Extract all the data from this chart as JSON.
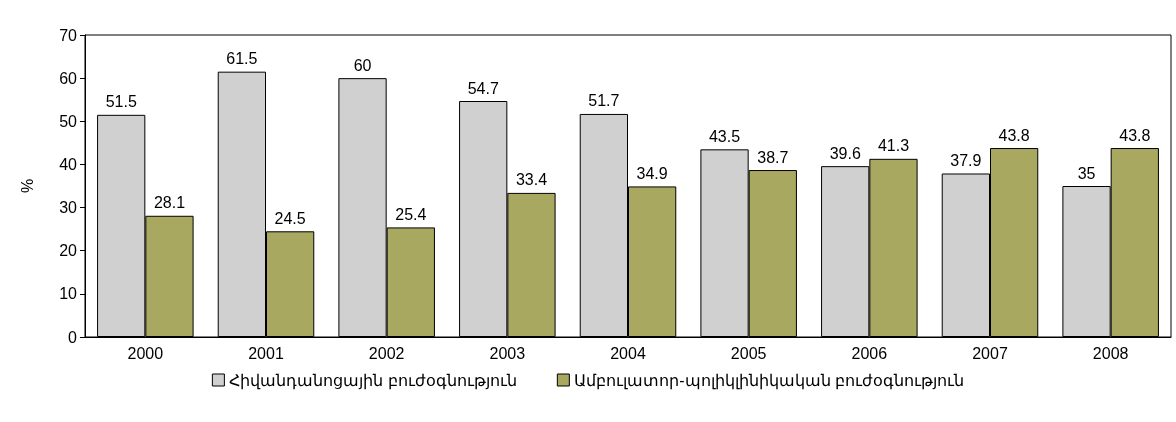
{
  "chart_data": {
    "type": "bar",
    "ylabel": "%",
    "categories": [
      "2000",
      "2001",
      "2002",
      "2003",
      "2004",
      "2005",
      "2006",
      "2007",
      "2008"
    ],
    "series": [
      {
        "name": "Հիվանդանոցային բուժօգնություն",
        "color": "#d0d0d0",
        "values": [
          51.5,
          61.5,
          60,
          54.7,
          51.7,
          43.5,
          39.6,
          37.9,
          35
        ]
      },
      {
        "name": "Ամբուլատոր-պոլիկլինիկական բուժօգնություն",
        "color": "#a8a860",
        "values": [
          28.1,
          24.5,
          25.4,
          33.4,
          34.9,
          38.7,
          41.3,
          43.8,
          43.8
        ]
      }
    ],
    "ylim": [
      0,
      70
    ],
    "yticks": [
      0,
      10,
      20,
      30,
      40,
      50,
      60,
      70
    ],
    "grid": false,
    "legend": "bottom",
    "data_labels": true
  }
}
